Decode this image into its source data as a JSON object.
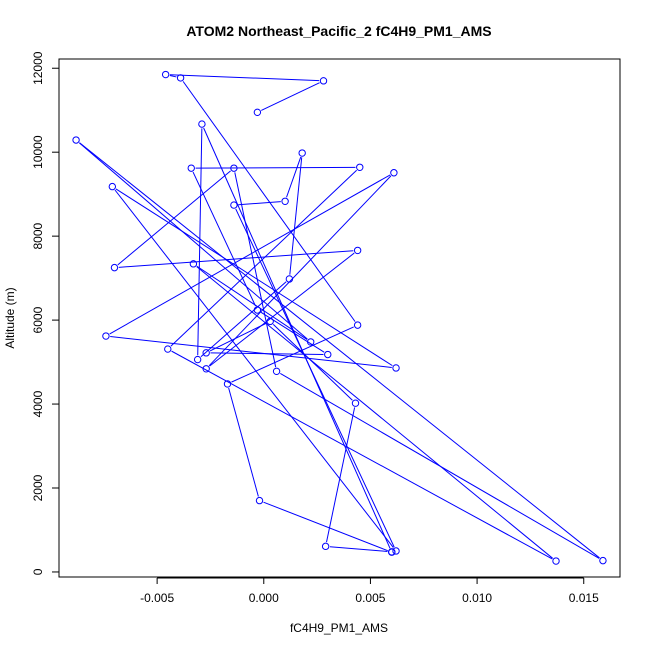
{
  "chart_data": {
    "type": "line",
    "title": "ATOM2 Northeast_Pacific_2 fC4H9_PM1_AMS",
    "xlabel": "fC4H9_PM1_AMS",
    "ylabel": "Altitude (m)",
    "xlim": [
      -0.0096,
      0.0167
    ],
    "ylim": [
      -120,
      12220
    ],
    "x_ticks": [
      -0.005,
      0.0,
      0.005,
      0.01,
      0.015
    ],
    "x_tick_labels": [
      "-0.005",
      "0.000",
      "0.005",
      "0.010",
      "0.015"
    ],
    "y_ticks": [
      0,
      2000,
      4000,
      6000,
      8000,
      10000,
      12000
    ],
    "y_tick_labels": [
      "0",
      "2000",
      "4000",
      "6000",
      "8000",
      "10000",
      "12000"
    ],
    "grid": false,
    "legend": "none",
    "marker": "open-circle",
    "color": "#0000ff",
    "series": [
      {
        "points": [
          [
            -0.0003,
            10950
          ],
          [
            0.0028,
            11700
          ],
          [
            -0.0046,
            11850
          ],
          [
            -0.0039,
            11770
          ],
          [
            0.0044,
            5880
          ],
          [
            -0.0017,
            4480
          ],
          [
            -0.0002,
            1700
          ],
          [
            0.006,
            470
          ],
          [
            -0.0029,
            10670
          ],
          [
            -0.0031,
            5060
          ],
          [
            0.0012,
            6980
          ],
          [
            0.0018,
            9980
          ],
          [
            0.001,
            8830
          ],
          [
            -0.0014,
            8740
          ],
          [
            0.0062,
            500
          ],
          [
            -0.0071,
            9180
          ],
          [
            0.0062,
            4860
          ],
          [
            -0.0074,
            5620
          ],
          [
            0.0061,
            9510
          ],
          [
            -0.0027,
            4840
          ],
          [
            0.0044,
            7660
          ],
          [
            -0.007,
            7250
          ],
          [
            -0.0014,
            9620
          ],
          [
            0.0006,
            4780
          ],
          [
            0.0159,
            270
          ],
          [
            -0.0088,
            10290
          ],
          [
            0.0022,
            5480
          ],
          [
            -0.0033,
            7340
          ],
          [
            0.0137,
            260
          ],
          [
            -0.0045,
            5310
          ],
          [
            0.0045,
            9640
          ],
          [
            -0.0034,
            9620
          ],
          [
            -0.0003,
            6240
          ],
          [
            0.003,
            5180
          ],
          [
            -0.0027,
            5220
          ],
          [
            0.0003,
            5970
          ],
          [
            0.0043,
            4020
          ],
          [
            0.0029,
            610
          ],
          [
            0.006,
            480
          ]
        ]
      }
    ]
  }
}
